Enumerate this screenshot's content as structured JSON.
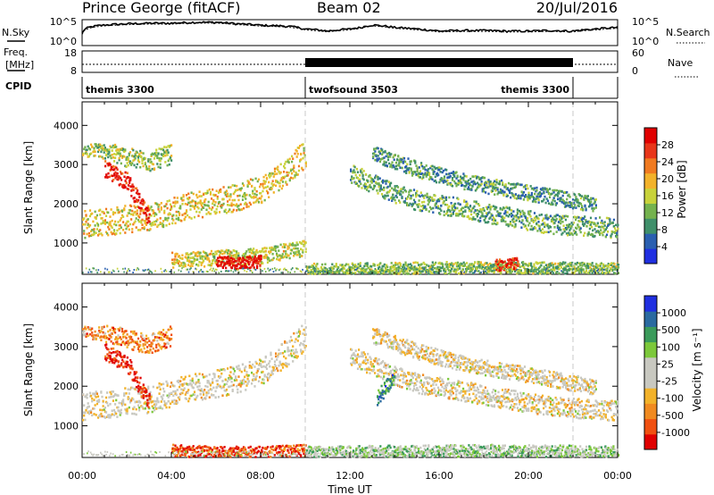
{
  "header": {
    "station": "Prince George (fitACF)",
    "beam": "Beam 02",
    "date": "20/Jul/2016"
  },
  "nsky_panel": {
    "left_label": "N.Sky",
    "right_label": "N.Search",
    "left_ticks": [
      "10^5",
      "10^0"
    ],
    "right_ticks": [
      "10^5",
      "10^0"
    ]
  },
  "freq_panel": {
    "left_label_1": "Freq.",
    "left_label_2": "[MHz]",
    "right_label": "Nave",
    "left_ticks": [
      "18",
      "8"
    ],
    "right_ticks": [
      "60",
      "0"
    ]
  },
  "cpid": {
    "label": "CPID",
    "segments": [
      {
        "name": "themis 3300",
        "start": 0,
        "end": 10
      },
      {
        "name": "twofsound 3503",
        "start": 10,
        "end": 22
      },
      {
        "name": "themis 3300",
        "start": 22,
        "end": 24
      }
    ]
  },
  "colors": {
    "power": [
      "#1f2fe0",
      "#2a5fb0",
      "#3f8f6a",
      "#74b24e",
      "#c8d23a",
      "#f2b22a",
      "#f07a20",
      "#e8361a",
      "#e00000"
    ],
    "velocity": [
      "#e00000",
      "#f05010",
      "#f08a20",
      "#f2b22a",
      "#c8c8c0",
      "#c8c8c0",
      "#7cc83a",
      "#3a9a5a",
      "#2a6aa0",
      "#1f2fe0"
    ]
  },
  "chart_data": [
    {
      "type": "line",
      "title": "N.Sky",
      "x_range": [
        0,
        24
      ],
      "y_scale": "log",
      "ylim": [
        1,
        100000
      ],
      "series": [
        {
          "name": "N.Sky",
          "x": [
            0,
            0.3,
            1,
            2,
            3,
            4,
            5,
            6,
            7,
            8,
            9,
            10,
            11,
            12,
            12.5,
            13,
            14,
            15,
            16,
            17,
            18,
            19,
            20,
            21,
            22,
            23,
            24
          ],
          "values": [
            200,
            3000,
            9000,
            15000,
            20000,
            20000,
            30000,
            30000,
            15000,
            8000,
            6000,
            1500,
            600,
            1500,
            3000,
            9000,
            3000,
            1500,
            600,
            800,
            800,
            600,
            600,
            800,
            600,
            1500,
            3000
          ]
        }
      ]
    },
    {
      "type": "line",
      "title": "Freq. / Nave",
      "x_range": [
        0,
        24
      ],
      "ylim": [
        8,
        18
      ],
      "series": [
        {
          "name": "Freq.",
          "x": [
            0,
            10,
            10,
            22,
            22,
            24
          ],
          "values": [
            10.5,
            10.5,
            14,
            14,
            10.5,
            10.5
          ]
        }
      ]
    },
    {
      "type": "heatmap",
      "title": "",
      "xlabel": "",
      "ylabel": "Slant Range [km]",
      "x_range": [
        0,
        24
      ],
      "ylim": [
        200,
        4600
      ],
      "yticks": [
        1000,
        2000,
        3000,
        4000
      ],
      "colorbar": {
        "label": "Power [dB]",
        "ticks": [
          "4",
          "8",
          "12",
          "16",
          "20",
          "24",
          "28"
        ]
      },
      "bands": [
        {
          "t": [
            0,
            3,
            5,
            7,
            8,
            9,
            10
          ],
          "r": [
            1500,
            1700,
            2000,
            2200,
            2400,
            2800,
            3300
          ],
          "width": 350,
          "level": 0.55
        },
        {
          "t": [
            0,
            1,
            2,
            3,
            4
          ],
          "r": [
            3500,
            3400,
            3200,
            3100,
            3300
          ],
          "width": 250,
          "level": 0.45
        },
        {
          "t": [
            1,
            2,
            3
          ],
          "r": [
            2900,
            2600,
            1600
          ],
          "width": 220,
          "level": 0.9
        },
        {
          "t": [
            4,
            5,
            6,
            7,
            8,
            9,
            10
          ],
          "r": [
            600,
            600,
            650,
            650,
            700,
            800,
            900
          ],
          "width": 200,
          "level": 0.5
        },
        {
          "t": [
            6,
            7,
            8
          ],
          "r": [
            550,
            500,
            550
          ],
          "width": 150,
          "level": 0.95
        },
        {
          "t": [
            12,
            13.5,
            15,
            17,
            19,
            21,
            24
          ],
          "r": [
            2800,
            2400,
            2100,
            1900,
            1700,
            1500,
            1400
          ],
          "width": 250,
          "level": 0.35
        },
        {
          "t": [
            13,
            15,
            17,
            19,
            21,
            23
          ],
          "r": [
            3300,
            2900,
            2600,
            2400,
            2200,
            2000
          ],
          "width": 200,
          "level": 0.3
        },
        {
          "t": [
            10,
            14,
            18,
            22,
            24
          ],
          "r": [
            350,
            380,
            400,
            380,
            360
          ],
          "width": 150,
          "level": 0.4
        },
        {
          "t": [
            18.5,
            19.5
          ],
          "r": [
            450,
            500
          ],
          "width": 150,
          "level": 0.9
        }
      ]
    },
    {
      "type": "heatmap",
      "title": "",
      "xlabel": "Time UT",
      "ylabel": "Slant Range [km]",
      "x_range": [
        0,
        24
      ],
      "ylim": [
        200,
        4600
      ],
      "yticks": [
        1000,
        2000,
        3000,
        4000
      ],
      "xticks": [
        "00:00",
        "04:00",
        "08:00",
        "12:00",
        "16:00",
        "20:00",
        "00:00"
      ],
      "colorbar": {
        "label": "Velocity [m s⁻¹]",
        "ticks": [
          "-1000",
          "-500",
          "-100",
          "-25",
          "25",
          "100",
          "500",
          "1000"
        ]
      },
      "bands": [
        {
          "t": [
            0,
            3,
            5,
            7,
            8,
            9,
            10
          ],
          "r": [
            1500,
            1700,
            2000,
            2200,
            2400,
            2800,
            3300
          ],
          "width": 350,
          "level": 0.45
        },
        {
          "t": [
            0,
            1,
            2,
            3,
            4
          ],
          "r": [
            3500,
            3400,
            3200,
            3100,
            3300
          ],
          "width": 250,
          "level": 0.25
        },
        {
          "t": [
            1,
            2,
            3
          ],
          "r": [
            2900,
            2600,
            1600
          ],
          "width": 220,
          "level": 0.05
        },
        {
          "t": [
            4,
            6,
            8,
            10
          ],
          "r": [
            400,
            350,
            350,
            400
          ],
          "width": 150,
          "level": 0.15
        },
        {
          "t": [
            12,
            13.5,
            15,
            17,
            19,
            21,
            24
          ],
          "r": [
            2800,
            2400,
            2100,
            1900,
            1700,
            1500,
            1400
          ],
          "width": 250,
          "level": 0.45
        },
        {
          "t": [
            13,
            15,
            17,
            19,
            21,
            23
          ],
          "r": [
            3300,
            2900,
            2600,
            2400,
            2200,
            2000
          ],
          "width": 200,
          "level": 0.45
        },
        {
          "t": [
            13.2,
            14
          ],
          "r": [
            1700,
            2300
          ],
          "width": 200,
          "level": 0.8
        },
        {
          "t": [
            10,
            14,
            18,
            22,
            24
          ],
          "r": [
            350,
            380,
            400,
            380,
            360
          ],
          "width": 150,
          "level": 0.6
        }
      ]
    }
  ],
  "time_axis": {
    "label": "Time UT",
    "ticks": [
      "00:00",
      "04:00",
      "08:00",
      "12:00",
      "16:00",
      "20:00",
      "00:00"
    ]
  }
}
